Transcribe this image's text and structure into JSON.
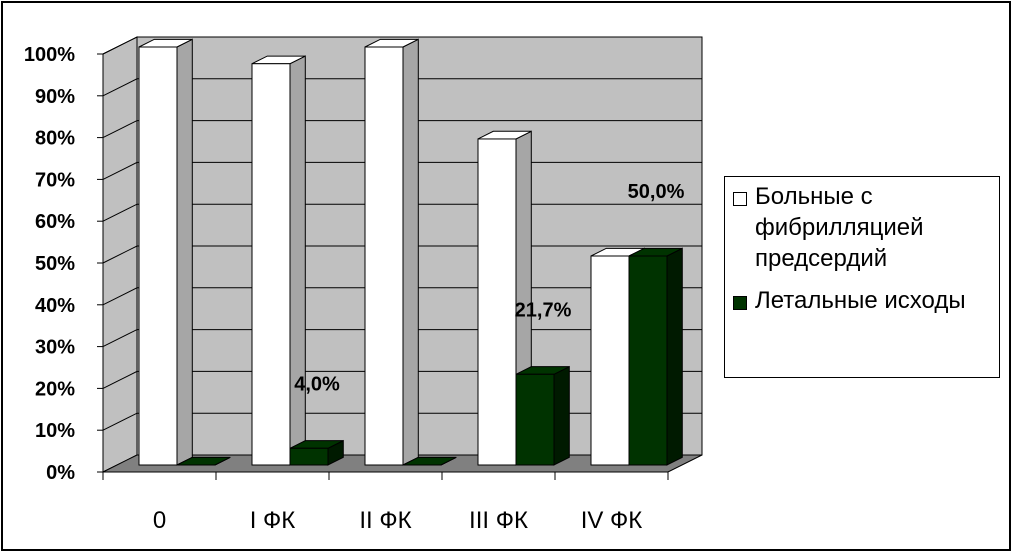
{
  "chart_data": {
    "type": "bar",
    "categories": [
      "0",
      "I ФК",
      "II ФК",
      "III ФК",
      "IV ФК"
    ],
    "series": [
      {
        "name": "Больные с фибрилляцией предсердий",
        "color": "#ffffff",
        "values": [
          100,
          96,
          100,
          78,
          50
        ]
      },
      {
        "name": "Летальные исходы",
        "color": "#003300",
        "values": [
          0,
          4.0,
          0,
          21.7,
          50.0
        ],
        "data_labels": [
          "",
          "4,0%",
          "",
          "21,7%",
          "50,0%"
        ]
      }
    ],
    "yticks": [
      "0%",
      "10%",
      "20%",
      "30%",
      "40%",
      "50%",
      "60%",
      "70%",
      "80%",
      "90%",
      "100%"
    ],
    "ylim": [
      0,
      100
    ],
    "grid": true,
    "style": "3d-clustered-column",
    "legend_position": "right",
    "plot_background": "#c0c0c0",
    "floor_color": "#808080"
  }
}
